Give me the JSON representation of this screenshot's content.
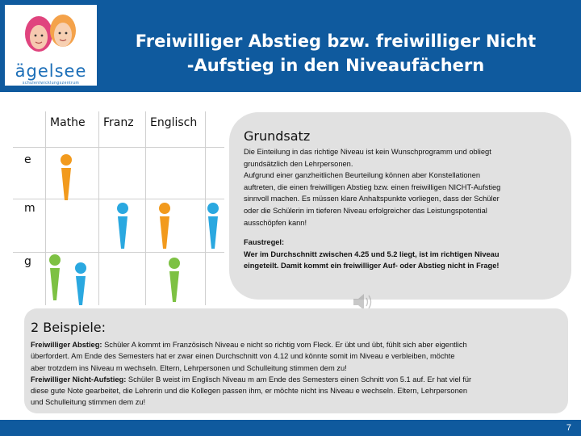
{
  "header": {
    "title_line1": "Freiwilliger Abstieg bzw. freiwilliger Nicht",
    "title_line2": "-Aufstieg in den Niveaufächern",
    "logo_text": "ägelsee",
    "logo_subtext": "schulentwicklungszentrum",
    "color": "#0f5a9e"
  },
  "grid": {
    "columns": [
      "Mathe",
      "Franz",
      "Englisch"
    ],
    "rows": [
      "e",
      "m",
      "g"
    ],
    "figure_colors": {
      "orange": "#f29a1d",
      "blue": "#2aa8e0",
      "green": "#7dc143"
    },
    "figures": [
      {
        "column": "Mathe",
        "row": "e",
        "color": "orange"
      },
      {
        "column": "Franz",
        "row": "m",
        "color": "blue"
      },
      {
        "column": "Englisch",
        "row": "m",
        "color": "orange"
      },
      {
        "column": "Englisch",
        "row": "m",
        "color": "blue"
      },
      {
        "column": "Mathe",
        "row": "g",
        "color": "green"
      },
      {
        "column": "Mathe",
        "row": "g",
        "color": "blue"
      },
      {
        "column": "Englisch",
        "row": "g",
        "color": "green"
      }
    ]
  },
  "grundsatz": {
    "title": "Grundsatz",
    "lines": [
      "Die Einteilung in das richtige Niveau ist kein Wunschprogramm und obliegt",
      "grundsätzlich den Lehrpersonen.",
      "Aufgrund einer ganzheitlichen Beurteilung können aber Konstellationen",
      "auftreten, die einen freiwilligen Abstieg bzw. einen freiwilligen NICHT-Aufstieg",
      "sinnvoll machen. Es müssen klare Anhaltspunkte vorliegen, dass der Schüler",
      "oder die Schülerin im tieferen Niveau erfolgreicher das Leistungspotential",
      "ausschöpfen kann!"
    ],
    "faustregel_lines": [
      "Faustregel:",
      "Wer im Durchschnitt zwischen 4.25 und 5.2 liegt, ist im richtigen Niveau",
      "eingeteilt. Damit kommt ein freiwilliger Auf- oder Abstieg nicht in Frage!"
    ],
    "speaker_icon": "speaker-icon"
  },
  "examples": {
    "title": "2 Beispiele:",
    "ex1_label": "Freiwilliger Abstieg:",
    "ex1_line1": " Schüler A kommt im Französisch Niveau e nicht so richtig vom Fleck. Er übt und übt, fühlt sich aber eigentlich",
    "ex1_line2": "überfordert. Am Ende des Semesters hat er zwar einen Durchschnitt von 4.12 und könnte somit im Niveau e verbleiben, möchte",
    "ex1_line3": "aber trotzdem ins Niveau m wechseln. Eltern, Lehrpersonen und Schulleitung stimmen dem zu!",
    "ex2_label": "Freiwilliger Nicht-Aufstieg:",
    "ex2_line1": " Schüler B weist im Englisch Niveau m am Ende des Semesters einen Schnitt von 5.1 auf. Er hat viel für",
    "ex2_line2": "diese gute Note gearbeitet, die Lehrerin und die Kollegen passen ihm, er möchte nicht ins Niveau e wechseln. Eltern, Lehrpersonen",
    "ex2_line3": "und Schulleitung stimmen dem zu!"
  },
  "footer": {
    "page_number": "7"
  }
}
